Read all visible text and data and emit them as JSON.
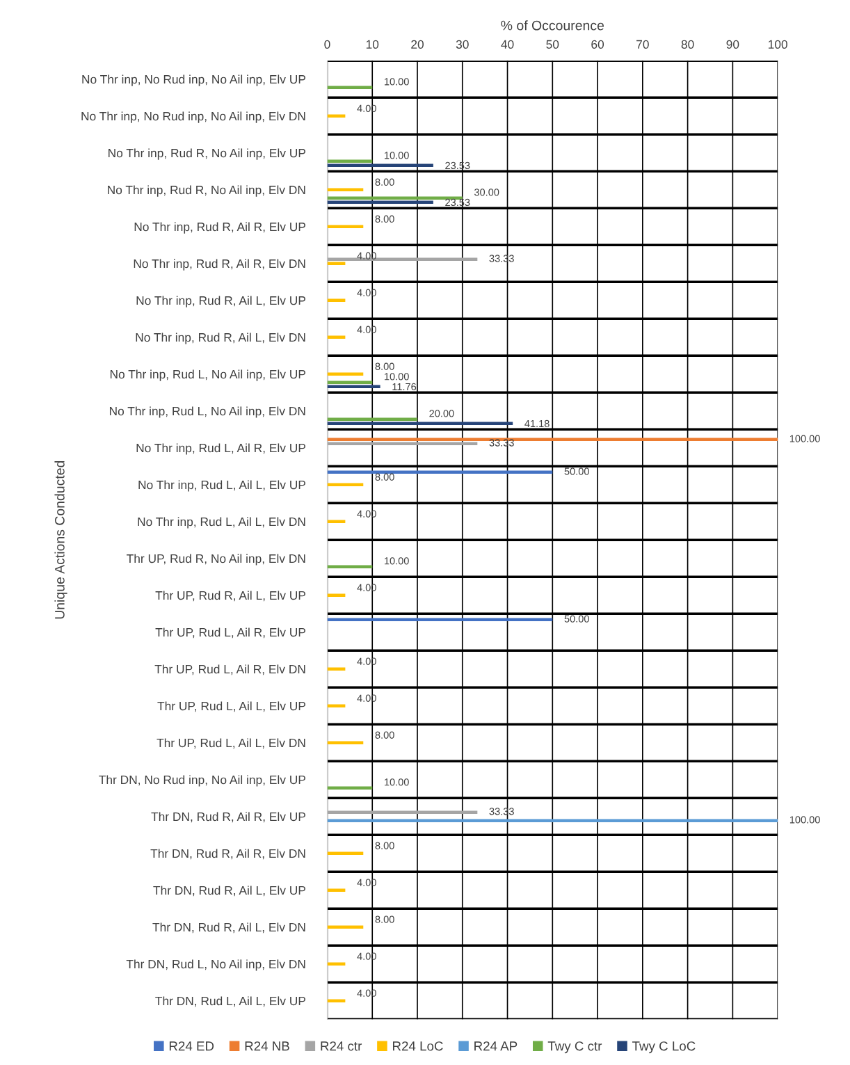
{
  "chart_data": {
    "type": "bar",
    "orientation": "horizontal",
    "xlabel": "% of Occourence",
    "ylabel": "Unique Actions Conducted",
    "categories": [
      "No Thr inp, No Rud inp, No Ail inp, Elv UP",
      "No Thr inp, No Rud inp, No Ail inp, Elv DN",
      "No Thr inp, Rud R, No Ail inp, Elv UP",
      "No Thr inp, Rud R, No Ail inp, Elv DN",
      "No Thr inp, Rud R, Ail R, Elv UP",
      "No Thr inp, Rud R, Ail R, Elv DN",
      "No Thr inp, Rud R, Ail L, Elv UP",
      "No Thr inp, Rud R, Ail L, Elv DN",
      "No Thr inp, Rud L, No Ail inp, Elv UP",
      "No Thr inp, Rud L, No Ail inp, Elv DN",
      "No Thr inp, Rud L, Ail R, Elv UP",
      "No Thr inp, Rud L, Ail L, Elv UP",
      "No Thr inp, Rud L, Ail L, Elv DN",
      "Thr UP, Rud R, No Ail inp, Elv DN",
      "Thr UP, Rud R, Ail L, Elv UP",
      "Thr UP, Rud L, Ail R, Elv UP",
      "Thr UP, Rud L, Ail R, Elv DN",
      "Thr UP, Rud L, Ail L, Elv UP",
      "Thr UP, Rud L, Ail L, Elv DN",
      "Thr DN, No Rud inp, No Ail inp, Elv UP",
      "Thr DN, Rud R, Ail R, Elv UP",
      "Thr DN, Rud R, Ail R, Elv DN",
      "Thr DN, Rud R, Ail L, Elv UP",
      "Thr DN, Rud R, Ail L, Elv DN",
      "Thr DN, Rud L, No Ail inp, Elv DN",
      "Thr DN, Rud L, Ail L, Elv UP"
    ],
    "series": [
      {
        "name": "R24 ED",
        "color": "#4472c4",
        "values": [
          null,
          null,
          null,
          null,
          null,
          null,
          null,
          null,
          null,
          null,
          null,
          50,
          null,
          null,
          null,
          50,
          null,
          null,
          null,
          null,
          null,
          null,
          null,
          null,
          null,
          null
        ],
        "value_labels": [
          null,
          null,
          null,
          null,
          null,
          null,
          null,
          null,
          null,
          null,
          null,
          "50.00",
          null,
          null,
          null,
          "50.00",
          null,
          null,
          null,
          null,
          null,
          null,
          null,
          null,
          null,
          null
        ]
      },
      {
        "name": "R24 NB",
        "color": "#ed7d31",
        "values": [
          null,
          null,
          null,
          null,
          null,
          null,
          null,
          null,
          null,
          null,
          100,
          null,
          null,
          null,
          null,
          null,
          null,
          null,
          null,
          null,
          null,
          null,
          null,
          null,
          null,
          null
        ],
        "value_labels": [
          null,
          null,
          null,
          null,
          null,
          null,
          null,
          null,
          null,
          null,
          "100.00",
          null,
          null,
          null,
          null,
          null,
          null,
          null,
          null,
          null,
          null,
          null,
          null,
          null,
          null,
          null
        ]
      },
      {
        "name": "R24 ctr",
        "color": "#a5a5a5",
        "values": [
          null,
          null,
          null,
          null,
          null,
          33.33,
          null,
          null,
          null,
          null,
          33.33,
          null,
          null,
          null,
          null,
          null,
          null,
          null,
          null,
          null,
          33.33,
          null,
          null,
          null,
          null,
          null
        ],
        "value_labels": [
          null,
          null,
          null,
          null,
          null,
          "33.33",
          null,
          null,
          null,
          null,
          "33.33",
          null,
          null,
          null,
          null,
          null,
          null,
          null,
          null,
          null,
          "33.33",
          null,
          null,
          null,
          null,
          null
        ]
      },
      {
        "name": "R24 LoC",
        "color": "#ffc000",
        "values": [
          null,
          4,
          null,
          8,
          8,
          4,
          4,
          4,
          8,
          null,
          null,
          8,
          4,
          null,
          4,
          null,
          4,
          4,
          8,
          null,
          null,
          8,
          4,
          8,
          4,
          4
        ],
        "value_labels": [
          null,
          "4.00",
          null,
          "8.00",
          "8.00",
          "4.00",
          "4.00",
          "4.00",
          "8.00",
          null,
          null,
          "8.00",
          "4.00",
          null,
          "4.00",
          null,
          "4.00",
          "4.00",
          "8.00",
          null,
          null,
          "8.00",
          "4.00",
          "8.00",
          "4.00",
          "4.00"
        ]
      },
      {
        "name": "R24 AP",
        "color": "#5b9bd5",
        "values": [
          null,
          null,
          null,
          null,
          null,
          null,
          null,
          null,
          null,
          null,
          null,
          null,
          null,
          null,
          null,
          null,
          null,
          null,
          null,
          null,
          100,
          null,
          null,
          null,
          null,
          null
        ],
        "value_labels": [
          null,
          null,
          null,
          null,
          null,
          null,
          null,
          null,
          null,
          null,
          null,
          null,
          null,
          null,
          null,
          null,
          null,
          null,
          null,
          null,
          "100.00",
          null,
          null,
          null,
          null,
          null
        ]
      },
      {
        "name": "Twy C ctr",
        "color": "#70ad47",
        "values": [
          10,
          null,
          10,
          30,
          null,
          null,
          null,
          null,
          10,
          20,
          null,
          null,
          null,
          10,
          null,
          null,
          null,
          null,
          null,
          10,
          null,
          null,
          null,
          null,
          null,
          null
        ],
        "value_labels": [
          "10.00",
          null,
          "10.00",
          "30.00",
          null,
          null,
          null,
          null,
          "10.00",
          "20.00",
          null,
          null,
          null,
          "10.00",
          null,
          null,
          null,
          null,
          null,
          "10.00",
          null,
          null,
          null,
          null,
          null,
          null
        ]
      },
      {
        "name": "Twy C LoC",
        "color": "#264478",
        "values": [
          null,
          null,
          23.53,
          23.53,
          null,
          null,
          null,
          null,
          11.76,
          41.18,
          null,
          null,
          null,
          null,
          null,
          null,
          null,
          null,
          null,
          null,
          null,
          null,
          null,
          null,
          null,
          null
        ],
        "value_labels": [
          null,
          null,
          "23.53",
          "23.53",
          null,
          null,
          null,
          null,
          "11.76",
          "41.18",
          null,
          null,
          null,
          null,
          null,
          null,
          null,
          null,
          null,
          null,
          null,
          null,
          null,
          null,
          null,
          null
        ]
      }
    ],
    "xlim": [
      0,
      100
    ],
    "xticks": [
      0,
      10,
      20,
      30,
      40,
      50,
      60,
      70,
      80,
      90,
      100
    ],
    "grid": true,
    "legend": "bottom"
  }
}
